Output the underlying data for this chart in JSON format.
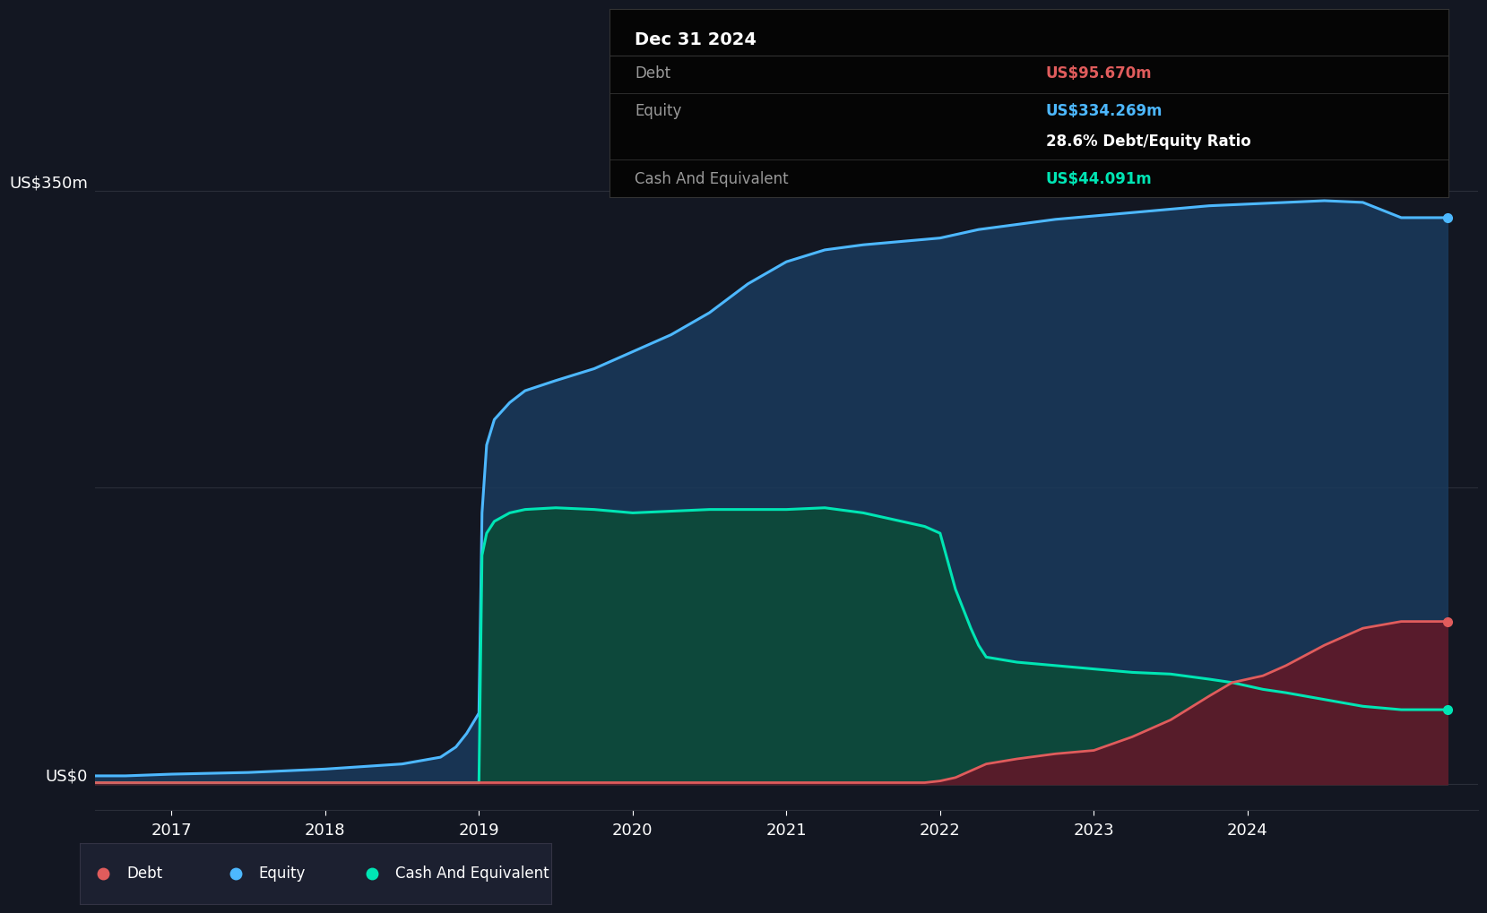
{
  "background_color": "#131722",
  "plot_bg_color": "#131722",
  "grid_color": "#2a2e39",
  "title_box_bg": "#050505",
  "title_box_text": "Dec 31 2024",
  "tooltip_rows": [
    {
      "label": "Debt",
      "value": "US$95.670m",
      "value_color": "#e05c5c"
    },
    {
      "label": "Equity",
      "value": "US$334.269m",
      "value_color": "#4db8ff"
    },
    {
      "label": "",
      "value": "28.6% Debt/Equity Ratio",
      "value_color": "#ffffff"
    },
    {
      "label": "Cash And Equivalent",
      "value": "US$44.091m",
      "value_color": "#00e5b4"
    }
  ],
  "ylabel_top": "US$350m",
  "ylabel_bottom": "US$0",
  "xlim_start": 2016.5,
  "xlim_end": 2025.5,
  "ylim_min": -15,
  "ylim_max": 385,
  "equity_color": "#4db8ff",
  "equity_fill": "#1a3a5c",
  "debt_color": "#e05c5c",
  "debt_fill": "#5c1a2a",
  "cash_color": "#00e5b4",
  "cash_fill": "#0d4a3a",
  "legend_debt_label": "Debt",
  "legend_equity_label": "Equity",
  "legend_cash_label": "Cash And Equivalent",
  "x_years": [
    2017,
    2018,
    2019,
    2020,
    2021,
    2022,
    2023,
    2024
  ],
  "equity_data": {
    "x": [
      2016.5,
      2016.7,
      2017.0,
      2017.5,
      2018.0,
      2018.5,
      2018.75,
      2018.85,
      2018.92,
      2019.0,
      2019.02,
      2019.05,
      2019.1,
      2019.2,
      2019.3,
      2019.5,
      2019.75,
      2020.0,
      2020.25,
      2020.5,
      2020.75,
      2021.0,
      2021.25,
      2021.5,
      2021.75,
      2022.0,
      2022.25,
      2022.5,
      2022.75,
      2023.0,
      2023.25,
      2023.5,
      2023.75,
      2024.0,
      2024.25,
      2024.5,
      2024.75,
      2025.0,
      2025.3
    ],
    "y": [
      5,
      5,
      6,
      7,
      9,
      12,
      16,
      22,
      30,
      42,
      160,
      200,
      215,
      225,
      232,
      238,
      245,
      255,
      265,
      278,
      295,
      308,
      315,
      318,
      320,
      322,
      327,
      330,
      333,
      335,
      337,
      339,
      341,
      342,
      343,
      344,
      343,
      334,
      334
    ]
  },
  "debt_data": {
    "x": [
      2016.5,
      2017.0,
      2017.5,
      2018.0,
      2018.5,
      2019.0,
      2019.05,
      2020.0,
      2020.5,
      2021.0,
      2021.5,
      2021.9,
      2022.0,
      2022.1,
      2022.2,
      2022.3,
      2022.5,
      2022.75,
      2023.0,
      2023.25,
      2023.5,
      2023.75,
      2023.9,
      2024.0,
      2024.1,
      2024.25,
      2024.5,
      2024.75,
      2025.0,
      2025.3
    ],
    "y": [
      1,
      1,
      1,
      1,
      1,
      1,
      1,
      1,
      1,
      1,
      1,
      1,
      2,
      4,
      8,
      12,
      15,
      18,
      20,
      28,
      38,
      52,
      60,
      62,
      64,
      70,
      82,
      92,
      96,
      96
    ]
  },
  "cash_data": {
    "x": [
      2016.5,
      2017.0,
      2017.5,
      2018.0,
      2018.5,
      2018.85,
      2018.92,
      2019.0,
      2019.02,
      2019.05,
      2019.1,
      2019.2,
      2019.3,
      2019.5,
      2019.75,
      2020.0,
      2020.25,
      2020.5,
      2020.75,
      2021.0,
      2021.25,
      2021.5,
      2021.75,
      2021.9,
      2022.0,
      2022.1,
      2022.2,
      2022.25,
      2022.3,
      2022.5,
      2022.75,
      2023.0,
      2023.25,
      2023.5,
      2023.75,
      2023.9,
      2024.0,
      2024.1,
      2024.25,
      2024.5,
      2024.75,
      2025.0,
      2025.3
    ],
    "y": [
      1,
      1,
      1,
      1,
      1,
      1,
      1,
      1,
      135,
      148,
      155,
      160,
      162,
      163,
      162,
      160,
      161,
      162,
      162,
      162,
      163,
      160,
      155,
      152,
      148,
      115,
      92,
      82,
      75,
      72,
      70,
      68,
      66,
      65,
      62,
      60,
      58,
      56,
      54,
      50,
      46,
      44,
      44
    ]
  }
}
